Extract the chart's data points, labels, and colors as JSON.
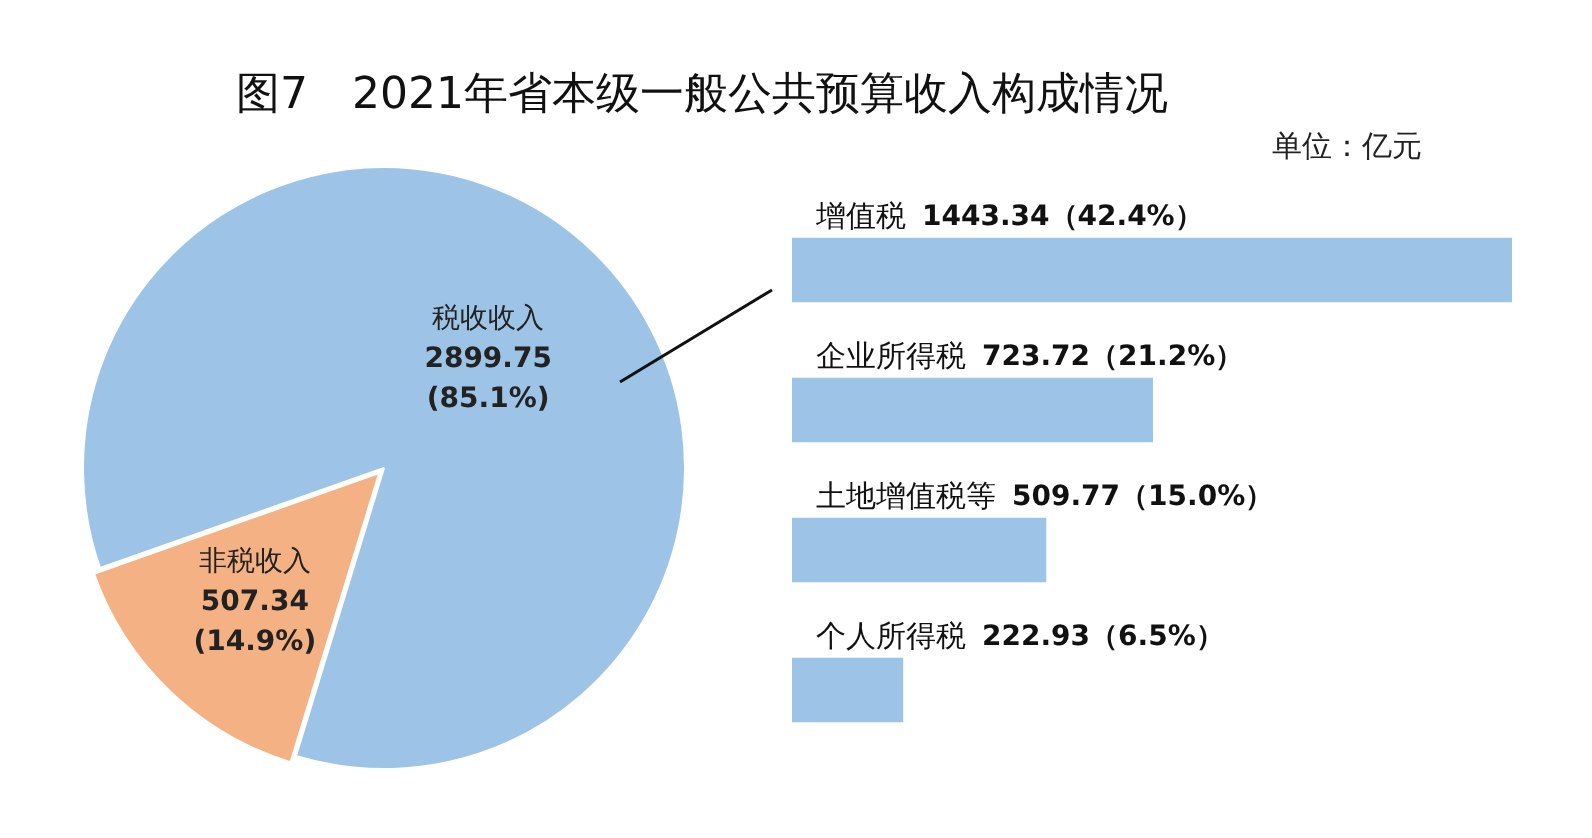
{
  "chart_data": [
    {
      "type": "pie",
      "title": "图7　2021年省本级一般公共预算收入构成情况",
      "categories": [
        "税收收入",
        "非税收入"
      ],
      "values": [
        2899.75,
        507.34
      ],
      "colors": [
        "#9dc3e6",
        "#f4b183"
      ],
      "value_labels": [
        "2899.75 (85.1%)",
        "507.34 (14.9%)"
      ]
    },
    {
      "type": "bar",
      "orientation": "horizontal",
      "annotations": [
        "单位：亿元"
      ],
      "categories": [
        "增值税",
        "企业所得税",
        "土地增值税等",
        "个人所得税"
      ],
      "values": [
        1443.34,
        723.72,
        509.77,
        222.93
      ],
      "color": "#9dc3e6",
      "value_labels": [
        "1443.34（42.4%）",
        "723.72（21.2%）",
        "509.77（15.0%）",
        "222.93（6.5%）"
      ],
      "tick_labels": false
    }
  ]
}
